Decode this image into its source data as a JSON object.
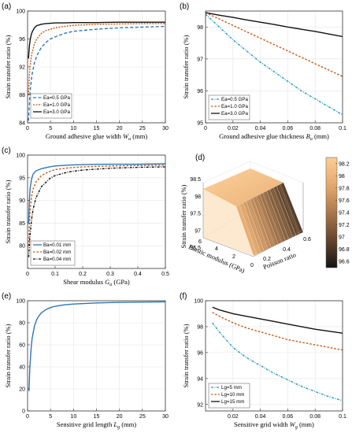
{
  "figure": {
    "colors": {
      "blue": "#2e75b6",
      "blue_cyan": "#1f9bbf",
      "orange": "#c55a11",
      "black": "#111111",
      "axes": "#333333",
      "grid": "#e6e6e6"
    }
  },
  "chart_data": [
    {
      "id": "a",
      "panel_label": "(a)",
      "type": "line",
      "xlabel_parts": [
        "Ground adhesive glue width ",
        "W",
        "a",
        " (mm)"
      ],
      "ylabel": "Strain transfer ratio (%)",
      "xlim": [
        0,
        30
      ],
      "ylim": [
        84,
        100
      ],
      "xticks": [
        0,
        5,
        10,
        15,
        20,
        25,
        30
      ],
      "yticks": [
        84,
        88,
        92,
        96,
        100
      ],
      "legend_position": "bottom-right",
      "series": [
        {
          "name": "Ea=0.5 GPa",
          "color": "#2e75b6",
          "dash": "4,2.5",
          "x": [
            0.2,
            0.4,
            0.6,
            0.8,
            1,
            1.5,
            2,
            3,
            4,
            5,
            6,
            8,
            10,
            15,
            20,
            25,
            30
          ],
          "y": [
            84.3,
            87.0,
            88.8,
            90.0,
            91.0,
            92.6,
            93.6,
            94.8,
            95.5,
            96.0,
            96.3,
            96.8,
            97.1,
            97.4,
            97.6,
            97.7,
            97.8
          ]
        },
        {
          "name": "Ea=1.0 GPa",
          "color": "#c55a11",
          "dash": "2,1.5",
          "x": [
            0.2,
            0.4,
            0.6,
            0.8,
            1,
            1.5,
            2,
            3,
            4,
            5,
            6,
            8,
            10,
            15,
            20,
            25,
            30
          ],
          "y": [
            88.0,
            90.8,
            92.4,
            93.4,
            94.1,
            95.3,
            96.0,
            96.8,
            97.2,
            97.4,
            97.6,
            97.8,
            97.95,
            98.1,
            98.15,
            98.2,
            98.2
          ]
        },
        {
          "name": "Ea=3.0 GPa",
          "color": "#111111",
          "dash": "",
          "x": [
            0.2,
            0.4,
            0.6,
            0.8,
            1,
            1.5,
            2,
            3,
            4,
            5,
            6,
            8,
            10,
            15,
            20,
            25,
            30
          ],
          "y": [
            93.2,
            95.0,
            96.0,
            96.6,
            97.0,
            97.6,
            97.9,
            98.1,
            98.2,
            98.25,
            98.3,
            98.3,
            98.35,
            98.35,
            98.4,
            98.4,
            98.4
          ]
        }
      ]
    },
    {
      "id": "b",
      "panel_label": "(b)",
      "type": "line",
      "xlabel_parts": [
        "Ground adhesive glue thickness ",
        "B",
        "a",
        " (mm)"
      ],
      "ylabel": "Strain transfer ratio (%)",
      "xlim": [
        0,
        0.1
      ],
      "ylim": [
        95,
        98.5
      ],
      "xticks": [
        0,
        0.02,
        0.04,
        0.06,
        0.08,
        0.1
      ],
      "xticklabels": [
        "0",
        "0.02",
        "0.04",
        "0.06",
        "0.08",
        "0.1"
      ],
      "yticks": [
        95,
        96,
        97,
        98
      ],
      "legend_position": "bottom-left",
      "series": [
        {
          "name": "Ea=0.5 GPa",
          "color": "#1f9bbf",
          "dash": "3,1.5,1,1.5",
          "x": [
            0,
            0.01,
            0.02,
            0.03,
            0.04,
            0.05,
            0.06,
            0.07,
            0.08,
            0.09,
            0.1
          ],
          "y": [
            98.4,
            98.0,
            97.6,
            97.25,
            96.9,
            96.6,
            96.3,
            96.0,
            95.75,
            95.5,
            95.25
          ]
        },
        {
          "name": "Ea=1.0 GPa",
          "color": "#c55a11",
          "dash": "2.5,2",
          "x": [
            0,
            0.01,
            0.02,
            0.03,
            0.04,
            0.05,
            0.06,
            0.07,
            0.08,
            0.09,
            0.1
          ],
          "y": [
            98.45,
            98.25,
            98.05,
            97.85,
            97.65,
            97.45,
            97.25,
            97.05,
            96.85,
            96.65,
            96.45
          ]
        },
        {
          "name": "Ea=3.0 GPa",
          "color": "#111111",
          "dash": "",
          "x": [
            0,
            0.01,
            0.02,
            0.03,
            0.04,
            0.05,
            0.06,
            0.07,
            0.08,
            0.09,
            0.1
          ],
          "y": [
            98.45,
            98.37,
            98.3,
            98.22,
            98.15,
            98.08,
            98.0,
            97.93,
            97.86,
            97.78,
            97.7
          ]
        }
      ]
    },
    {
      "id": "c",
      "panel_label": "(c)",
      "type": "line",
      "xlabel_parts": [
        "Shear modulus ",
        "G",
        "a",
        " (GPa)"
      ],
      "ylabel": "Strain transfer ratio (%)",
      "xlim": [
        0,
        0.5
      ],
      "ylim": [
        75,
        100
      ],
      "xticks": [
        0,
        0.1,
        0.2,
        0.3,
        0.4,
        0.5
      ],
      "xticklabels": [
        "0",
        "0.1",
        "0.2",
        "0.3",
        "0.4",
        "0.5"
      ],
      "yticks": [
        80,
        85,
        90,
        95,
        100
      ],
      "legend_position": "bottom-right",
      "series": [
        {
          "name": "Ba=0.01 mm",
          "color": "#2e75b6",
          "dash": "",
          "x": [
            0.004,
            0.006,
            0.008,
            0.01,
            0.015,
            0.02,
            0.03,
            0.05,
            0.08,
            0.1,
            0.15,
            0.2,
            0.3,
            0.4,
            0.5
          ],
          "y": [
            85.0,
            89.0,
            91.5,
            93.0,
            94.8,
            95.8,
            96.5,
            97.0,
            97.4,
            97.6,
            97.8,
            97.9,
            98.0,
            98.0,
            98.1
          ]
        },
        {
          "name": "Ba=0.02 mm",
          "color": "#c55a11",
          "dash": "2.5,2",
          "x": [
            0.004,
            0.006,
            0.008,
            0.01,
            0.015,
            0.02,
            0.03,
            0.05,
            0.08,
            0.1,
            0.15,
            0.2,
            0.3,
            0.4,
            0.5
          ],
          "y": [
            80.0,
            84.0,
            86.5,
            88.5,
            91.0,
            92.5,
            94.0,
            95.5,
            96.4,
            96.8,
            97.2,
            97.4,
            97.6,
            97.7,
            97.8
          ]
        },
        {
          "name": "Ba=0.04 mm",
          "color": "#111111",
          "dash": "3,1.5,1,1.5",
          "x": [
            0.004,
            0.006,
            0.008,
            0.01,
            0.015,
            0.02,
            0.03,
            0.05,
            0.08,
            0.1,
            0.15,
            0.2,
            0.3,
            0.4,
            0.5
          ],
          "y": [
            77.5,
            79.5,
            81.5,
            83.0,
            86.0,
            88.0,
            90.5,
            93.0,
            94.8,
            95.5,
            96.3,
            96.7,
            97.1,
            97.3,
            97.4
          ]
        }
      ]
    },
    {
      "id": "d",
      "panel_label": "(d)",
      "type": "heatmap",
      "zlabel": "Strain transfer ratio (%)",
      "xlabel": "Elastic modulus (GPa)",
      "ylabel": "Poisson ratio",
      "ztick_labels": [
        "96.5",
        "97",
        "97.5",
        "98",
        "98.5"
      ],
      "xtick_labels": [
        "0",
        "2",
        "4",
        "6"
      ],
      "ytick_labels": [
        "0.2",
        "0.4",
        "0.6"
      ],
      "zlim": [
        96.5,
        98.5
      ],
      "colorbar_ticks": [
        "98.2",
        "98",
        "97.8",
        "97.6",
        "97.4",
        "97.2",
        "97",
        "96.8",
        "96.6"
      ],
      "colorbar_range": [
        96.5,
        98.3
      ]
    },
    {
      "id": "e",
      "panel_label": "(e)",
      "type": "line",
      "xlabel_parts": [
        "Sensitive grid length ",
        "L",
        "g",
        " (mm)"
      ],
      "ylabel": "Strain transfer ratio (%)",
      "xlim": [
        0,
        30
      ],
      "ylim": [
        0,
        100
      ],
      "xticks": [
        0,
        5,
        10,
        15,
        20,
        25,
        30
      ],
      "yticks": [
        0,
        20,
        40,
        60,
        80,
        100
      ],
      "series": [
        {
          "name": "",
          "color": "#2e75b6",
          "dash": "",
          "x": [
            0.3,
            0.5,
            0.8,
            1,
            1.5,
            2,
            2.5,
            3,
            4,
            5,
            6,
            8,
            10,
            15,
            20,
            25,
            30
          ],
          "y": [
            18,
            40,
            58,
            66,
            77,
            83,
            86.5,
            89,
            92,
            93.8,
            95,
            96.3,
            97,
            98,
            98.5,
            98.8,
            99
          ]
        }
      ]
    },
    {
      "id": "f",
      "panel_label": "(f)",
      "type": "line",
      "xlabel_parts": [
        "Sensitive grid width ",
        "W",
        "g",
        " (mm)"
      ],
      "ylabel": "Strain transfer ratio (%)",
      "xlim": [
        0,
        0.1
      ],
      "ylim": [
        91.5,
        100
      ],
      "xticks": [
        0.02,
        0.04,
        0.06,
        0.08,
        0.1
      ],
      "xticklabels": [
        "0.02",
        "0.04",
        "0.06",
        "0.08",
        "0.1"
      ],
      "yticks": [
        92,
        94,
        96,
        98,
        100
      ],
      "legend_position": "bottom-left",
      "series": [
        {
          "name": "Lg=5 mm",
          "color": "#1f9bbf",
          "dash": "3,1.5,1,1.5",
          "x": [
            0.005,
            0.01,
            0.02,
            0.03,
            0.04,
            0.05,
            0.06,
            0.07,
            0.08,
            0.09,
            0.1
          ],
          "y": [
            98.3,
            97.6,
            96.4,
            95.6,
            95.0,
            94.4,
            93.9,
            93.4,
            93.0,
            92.6,
            92.3
          ]
        },
        {
          "name": "Lg=10 mm",
          "color": "#c55a11",
          "dash": "2.5,2",
          "x": [
            0.005,
            0.01,
            0.02,
            0.03,
            0.04,
            0.05,
            0.06,
            0.07,
            0.08,
            0.09,
            0.1
          ],
          "y": [
            99.1,
            98.8,
            98.3,
            97.9,
            97.6,
            97.3,
            97.0,
            96.8,
            96.6,
            96.4,
            96.2
          ]
        },
        {
          "name": "Lg=15 mm",
          "color": "#111111",
          "dash": "",
          "x": [
            0.005,
            0.01,
            0.02,
            0.03,
            0.04,
            0.05,
            0.06,
            0.07,
            0.08,
            0.09,
            0.1
          ],
          "y": [
            99.5,
            99.3,
            99.0,
            98.8,
            98.6,
            98.4,
            98.2,
            98.0,
            97.8,
            97.65,
            97.5
          ]
        }
      ]
    }
  ]
}
